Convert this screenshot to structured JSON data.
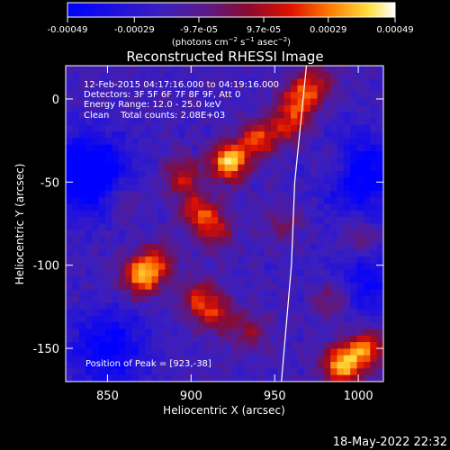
{
  "chart_data": {
    "type": "heatmap",
    "title": "Reconstructed RHESSI Image",
    "xlabel": "Heliocentric X (arcsec)",
    "ylabel": "Heliocentric Y (arcsec)",
    "xlim": [
      825,
      1015
    ],
    "ylim": [
      -170,
      20
    ],
    "x_ticks": [
      850,
      900,
      950,
      1000
    ],
    "y_ticks": [
      0,
      -50,
      -100,
      -150
    ],
    "colorbar": {
      "min": -0.00049,
      "max": 0.00049,
      "tick_labels": [
        "-0.00049",
        "-0.00029",
        "-9.7e-05",
        "9.7e-05",
        "0.00029",
        "0.00049"
      ],
      "tick_values": [
        -0.00049,
        -0.00029,
        -9.7e-05,
        9.7e-05,
        0.00029,
        0.00049
      ],
      "unit_label": "(photons cm^-2 s^-1 asec^-2)",
      "colormap": "blue-purple-red-yellow-white"
    },
    "annotations": {
      "time_range": "12-Feb-2015 04:17:16.000 to 04:19:16.000",
      "detectors": "Detectors: 3F 5F 6F 7F 8F 9F, Att 0",
      "energy": "Energy Range: 12.0 - 25.0 keV",
      "method": "Clean    Total counts: 2.08E+03",
      "peak": "Position of Peak = [923,-38]"
    },
    "sources": [
      {
        "x": 923,
        "y": -38,
        "intensity": 1.0
      },
      {
        "x": 940,
        "y": -24,
        "intensity": 0.65
      },
      {
        "x": 958,
        "y": -15,
        "intensity": 0.55
      },
      {
        "x": 965,
        "y": 0,
        "intensity": 0.6
      },
      {
        "x": 975,
        "y": 10,
        "intensity": 0.45
      },
      {
        "x": 895,
        "y": -47,
        "intensity": 0.55
      },
      {
        "x": 905,
        "y": -68,
        "intensity": 0.6
      },
      {
        "x": 915,
        "y": -80,
        "intensity": 0.45
      },
      {
        "x": 870,
        "y": -107,
        "intensity": 0.85
      },
      {
        "x": 880,
        "y": -98,
        "intensity": 0.5
      },
      {
        "x": 905,
        "y": -120,
        "intensity": 0.55
      },
      {
        "x": 915,
        "y": -130,
        "intensity": 0.45
      },
      {
        "x": 935,
        "y": -140,
        "intensity": 0.4
      },
      {
        "x": 990,
        "y": -160,
        "intensity": 0.95
      },
      {
        "x": 1005,
        "y": -150,
        "intensity": 0.75
      },
      {
        "x": 985,
        "y": -120,
        "intensity": 0.45
      },
      {
        "x": 1000,
        "y": -85,
        "intensity": 0.35
      },
      {
        "x": 985,
        "y": -40,
        "intensity": 0.35
      },
      {
        "x": 860,
        "y": -60,
        "intensity": 0.3
      },
      {
        "x": 955,
        "y": -75,
        "intensity": 0.3
      }
    ],
    "negative_regions": [
      {
        "x": 838,
        "y": -45,
        "intensity": -0.8
      },
      {
        "x": 1000,
        "y": -45,
        "intensity": -0.6
      },
      {
        "x": 1005,
        "y": -110,
        "intensity": -0.4
      },
      {
        "x": 850,
        "y": -150,
        "intensity": -0.5
      }
    ],
    "limb_points": [
      [
        969,
        20
      ],
      [
        962,
        -50
      ],
      [
        960,
        -100
      ],
      [
        954,
        -170
      ]
    ]
  },
  "footer": {
    "date": "18-May-2022 22:32"
  }
}
